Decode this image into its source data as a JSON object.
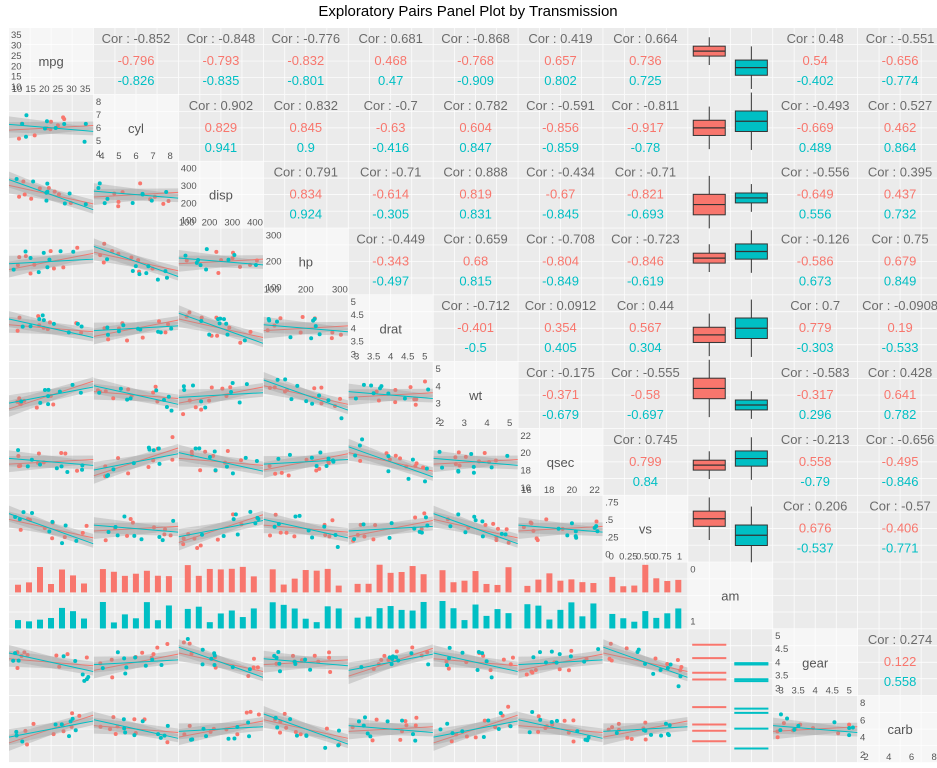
{
  "chart_data": {
    "type": "scatter",
    "title": "Exploratory Pairs Panel Plot by Transmission",
    "variables": [
      "mpg",
      "cyl",
      "disp",
      "hp",
      "drat",
      "wt",
      "qsec",
      "vs",
      "am",
      "gear",
      "carb"
    ],
    "group_variable": "am",
    "group_colors": {
      "0": "#F8766D",
      "1": "#00BFC4"
    },
    "panel_layout": {
      "lower": "scatter with linear fit and confidence band",
      "diagonal": "variable name with axis ticks",
      "upper": "correlation text: overall and by group"
    },
    "diag_ticks": {
      "mpg": [
        "35",
        "30",
        "25",
        "20",
        "15",
        "10"
      ],
      "mpg_x": [
        "10",
        "15",
        "20",
        "25",
        "30",
        "35"
      ],
      "cyl": [
        "8",
        "7",
        "6",
        "5",
        "4"
      ],
      "cyl_x": [
        "4",
        "5",
        "6",
        "7",
        "8"
      ],
      "disp": [
        "400",
        "300",
        "200",
        "100"
      ],
      "disp_x": [
        "100",
        "200",
        "300",
        "400"
      ],
      "hp": [
        "300",
        "200",
        "100"
      ],
      "hp_x": [
        "100",
        "200",
        "300"
      ],
      "drat": [
        "5",
        "4.5",
        "4",
        "3.5",
        "3"
      ],
      "drat_x": [
        "3",
        "3.5",
        "4",
        "4.5",
        "5"
      ],
      "wt": [
        "5",
        "4",
        "3",
        "2"
      ],
      "wt_x": [
        "2",
        "3",
        "4",
        "5"
      ],
      "qsec": [
        "22",
        "20",
        "18",
        "16"
      ],
      "qsec_x": [
        "16",
        "18",
        "20",
        "22"
      ],
      "vs": [
        ".75",
        ".5",
        ".25",
        "0"
      ],
      "vs_x": [
        "0",
        "0.25",
        "0.50",
        "0.75",
        "1"
      ],
      "am": [
        "0",
        "1"
      ],
      "gear": [
        "5",
        "4.5",
        "4",
        "3.5",
        "3"
      ],
      "gear_x": [
        "3",
        "3.5",
        "4",
        "4.5",
        "5"
      ],
      "carb": [
        "8",
        "6",
        "4",
        "2"
      ],
      "carb_x": [
        "2",
        "4",
        "6",
        "8"
      ]
    },
    "correlations": [
      {
        "row": 0,
        "col": 1,
        "overall": "Cor : -0.852",
        "g0": "-0.796",
        "g1": "-0.826"
      },
      {
        "row": 0,
        "col": 2,
        "overall": "Cor : -0.848",
        "g0": "-0.793",
        "g1": "-0.835"
      },
      {
        "row": 0,
        "col": 3,
        "overall": "Cor : -0.776",
        "g0": "-0.832",
        "g1": "-0.801"
      },
      {
        "row": 0,
        "col": 4,
        "overall": "Cor : 0.681",
        "g0": "0.468",
        "g1": "0.47"
      },
      {
        "row": 0,
        "col": 5,
        "overall": "Cor : -0.868",
        "g0": "-0.768",
        "g1": "-0.909"
      },
      {
        "row": 0,
        "col": 6,
        "overall": "Cor : 0.419",
        "g0": "0.657",
        "g1": "0.802"
      },
      {
        "row": 0,
        "col": 7,
        "overall": "Cor : 0.664",
        "g0": "0.736",
        "g1": "0.725"
      },
      {
        "row": 0,
        "col": 9,
        "overall": "Cor : 0.48",
        "g0": "0.54",
        "g1": "-0.402"
      },
      {
        "row": 0,
        "col": 10,
        "overall": "Cor : -0.551",
        "g0": "-0.656",
        "g1": "-0.774"
      },
      {
        "row": 1,
        "col": 2,
        "overall": "Cor : 0.902",
        "g0": "0.829",
        "g1": "0.941"
      },
      {
        "row": 1,
        "col": 3,
        "overall": "Cor : 0.832",
        "g0": "0.845",
        "g1": "0.9"
      },
      {
        "row": 1,
        "col": 4,
        "overall": "Cor : -0.7",
        "g0": "-0.63",
        "g1": "-0.416"
      },
      {
        "row": 1,
        "col": 5,
        "overall": "Cor : 0.782",
        "g0": "0.604",
        "g1": "0.847"
      },
      {
        "row": 1,
        "col": 6,
        "overall": "Cor : -0.591",
        "g0": "-0.856",
        "g1": "-0.859"
      },
      {
        "row": 1,
        "col": 7,
        "overall": "Cor : -0.811",
        "g0": "-0.917",
        "g1": "-0.78"
      },
      {
        "row": 1,
        "col": 9,
        "overall": "Cor : -0.493",
        "g0": "-0.669",
        "g1": "0.489"
      },
      {
        "row": 1,
        "col": 10,
        "overall": "Cor : 0.527",
        "g0": "0.462",
        "g1": "0.864"
      },
      {
        "row": 2,
        "col": 3,
        "overall": "Cor : 0.791",
        "g0": "0.834",
        "g1": "0.924"
      },
      {
        "row": 2,
        "col": 4,
        "overall": "Cor : -0.71",
        "g0": "-0.614",
        "g1": "-0.305"
      },
      {
        "row": 2,
        "col": 5,
        "overall": "Cor : 0.888",
        "g0": "0.819",
        "g1": "0.831"
      },
      {
        "row": 2,
        "col": 6,
        "overall": "Cor : -0.434",
        "g0": "-0.67",
        "g1": "-0.845"
      },
      {
        "row": 2,
        "col": 7,
        "overall": "Cor : -0.71",
        "g0": "-0.821",
        "g1": "-0.693"
      },
      {
        "row": 2,
        "col": 9,
        "overall": "Cor : -0.556",
        "g0": "-0.649",
        "g1": "0.556"
      },
      {
        "row": 2,
        "col": 10,
        "overall": "Cor : 0.395",
        "g0": "0.437",
        "g1": "0.732"
      },
      {
        "row": 3,
        "col": 4,
        "overall": "Cor : -0.449",
        "g0": "-0.343",
        "g1": "-0.497"
      },
      {
        "row": 3,
        "col": 5,
        "overall": "Cor : 0.659",
        "g0": "0.68",
        "g1": "0.815"
      },
      {
        "row": 3,
        "col": 6,
        "overall": "Cor : -0.708",
        "g0": "-0.804",
        "g1": "-0.849"
      },
      {
        "row": 3,
        "col": 7,
        "overall": "Cor : -0.723",
        "g0": "-0.846",
        "g1": "-0.619"
      },
      {
        "row": 3,
        "col": 9,
        "overall": "Cor : -0.126",
        "g0": "-0.586",
        "g1": "0.673"
      },
      {
        "row": 3,
        "col": 10,
        "overall": "Cor : 0.75",
        "g0": "0.679",
        "g1": "0.849"
      },
      {
        "row": 4,
        "col": 5,
        "overall": "Cor : -0.712",
        "g0": "-0.401",
        "g1": "-0.5"
      },
      {
        "row": 4,
        "col": 6,
        "overall": "Cor : 0.0912",
        "g0": "0.354",
        "g1": "0.405"
      },
      {
        "row": 4,
        "col": 7,
        "overall": "Cor : 0.44",
        "g0": "0.567",
        "g1": "0.304"
      },
      {
        "row": 4,
        "col": 9,
        "overall": "Cor : 0.7",
        "g0": "0.779",
        "g1": "-0.303"
      },
      {
        "row": 4,
        "col": 10,
        "overall": "Cor : -0.0908",
        "g0": "0.19",
        "g1": "-0.533"
      },
      {
        "row": 5,
        "col": 6,
        "overall": "Cor : -0.175",
        "g0": "-0.371",
        "g1": "-0.679"
      },
      {
        "row": 5,
        "col": 7,
        "overall": "Cor : -0.555",
        "g0": "-0.58",
        "g1": "-0.697"
      },
      {
        "row": 5,
        "col": 9,
        "overall": "Cor : -0.583",
        "g0": "-0.317",
        "g1": "0.296"
      },
      {
        "row": 5,
        "col": 10,
        "overall": "Cor : 0.428",
        "g0": "0.641",
        "g1": "0.782"
      },
      {
        "row": 6,
        "col": 7,
        "overall": "Cor : 0.745",
        "g0": "0.799",
        "g1": "0.84"
      },
      {
        "row": 6,
        "col": 9,
        "overall": "Cor : -0.213",
        "g0": "0.558",
        "g1": "-0.79"
      },
      {
        "row": 6,
        "col": 10,
        "overall": "Cor : -0.656",
        "g0": "-0.495",
        "g1": "-0.846"
      },
      {
        "row": 7,
        "col": 9,
        "overall": "Cor : 0.206",
        "g0": "0.676",
        "g1": "-0.537"
      },
      {
        "row": 7,
        "col": 10,
        "overall": "Cor : -0.57",
        "g0": "-0.406",
        "g1": "-0.771"
      },
      {
        "row": 9,
        "col": 10,
        "overall": "Cor : 0.274",
        "g0": "0.122",
        "g1": "0.558"
      }
    ]
  }
}
